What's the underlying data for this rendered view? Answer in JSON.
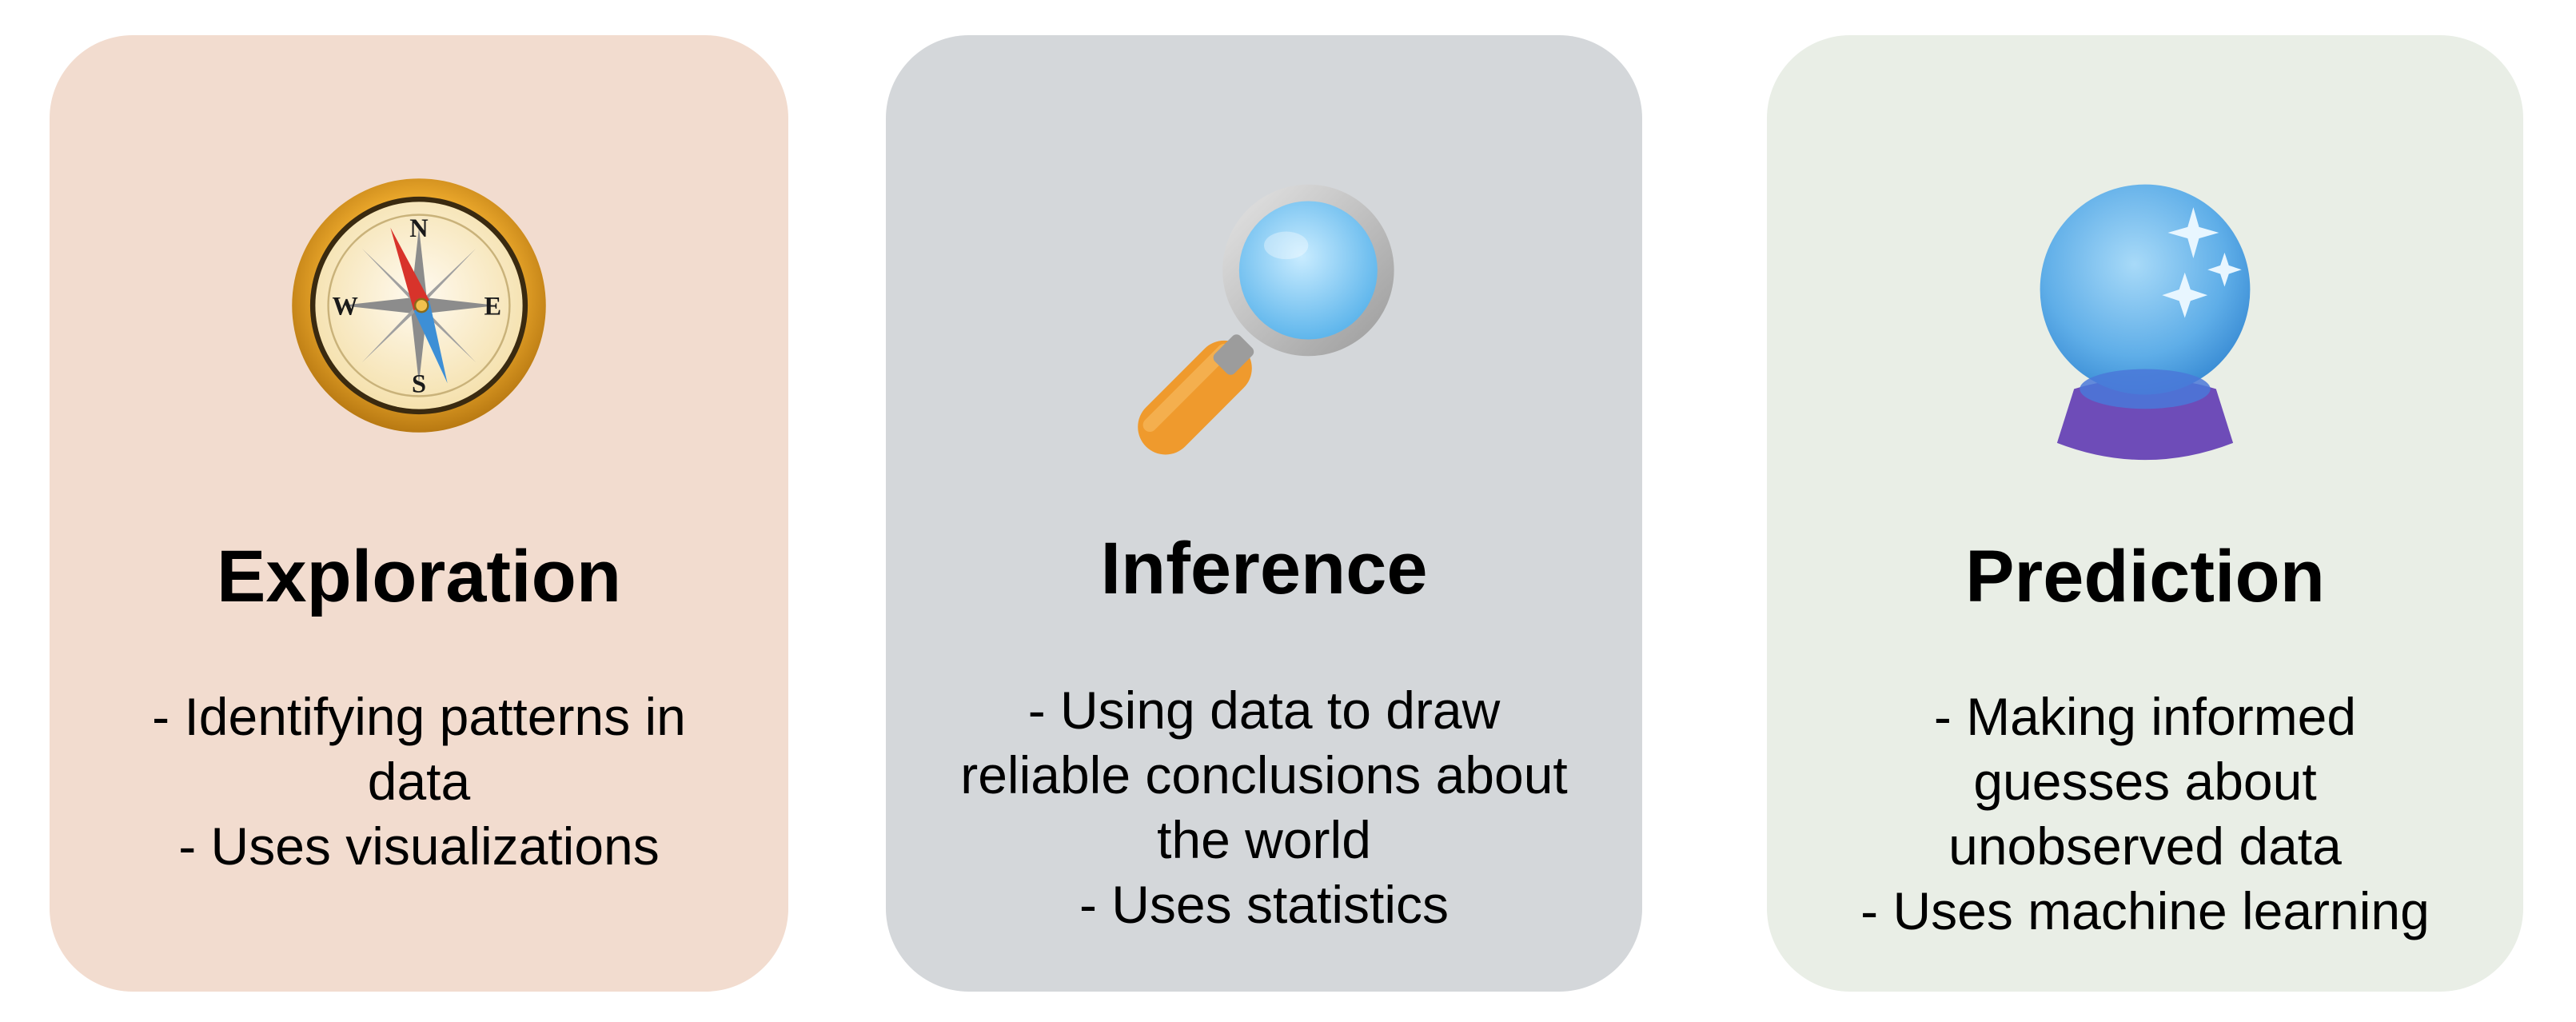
{
  "cards": [
    {
      "id": "exploration",
      "title": "Exploration",
      "icon": "compass-icon",
      "background": "#f2dccf",
      "lines": [
        "- Identifying patterns in",
        "data",
        "- Uses visualizations"
      ],
      "compass_letters": {
        "n": "N",
        "e": "E",
        "s": "S",
        "w": "W"
      }
    },
    {
      "id": "inference",
      "title": "Inference",
      "icon": "magnifying-glass-icon",
      "background": "#d4d7da",
      "lines": [
        "- Using data to draw",
        "reliable conclusions about",
        "the world",
        "- Uses statistics"
      ]
    },
    {
      "id": "prediction",
      "title": "Prediction",
      "icon": "crystal-ball-icon",
      "background": "#e9eee6",
      "lines": [
        "- Making informed",
        "guesses about",
        "unobserved data",
        "- Uses machine learning"
      ]
    }
  ],
  "colors": {
    "compass_gold": "#e8a52a",
    "compass_face": "#fbefc9",
    "needle_red": "#d8332b",
    "needle_blue": "#3d8fd6",
    "magnifier_lens": "#8fd0f5",
    "magnifier_handle": "#ef9a2d",
    "ball_blue": "#6cb8ef",
    "ball_base": "#6e4cb8"
  }
}
